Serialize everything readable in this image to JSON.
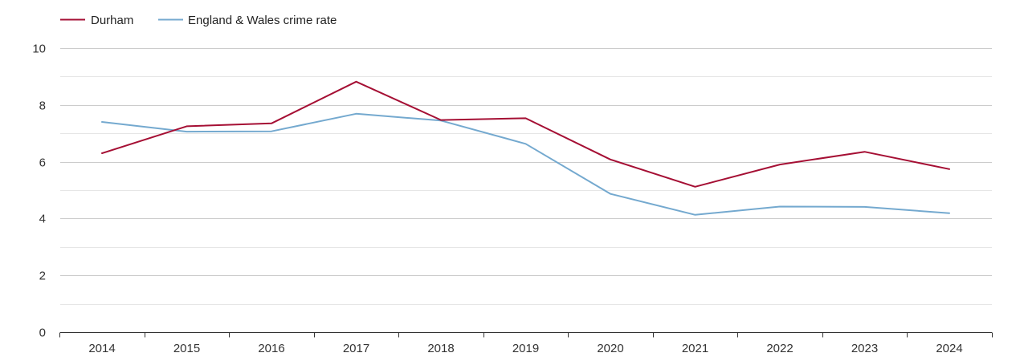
{
  "chart_data": {
    "type": "line",
    "title": "",
    "xlabel": "",
    "ylabel": "",
    "categories": [
      "2014",
      "2015",
      "2016",
      "2017",
      "2018",
      "2019",
      "2020",
      "2021",
      "2022",
      "2023",
      "2024"
    ],
    "ylim": [
      0,
      10
    ],
    "y_ticks": [
      "0",
      "2",
      "4",
      "6",
      "8",
      "10"
    ],
    "grid": true,
    "legend_position": "top-left",
    "series": [
      {
        "name": "Durham",
        "color": "#a50f34",
        "values": [
          6.3,
          7.25,
          7.35,
          8.82,
          7.47,
          7.53,
          6.08,
          5.12,
          5.9,
          6.35,
          5.74
        ]
      },
      {
        "name": "England & Wales crime rate",
        "color": "#74a9cf",
        "values": [
          7.4,
          7.06,
          7.07,
          7.69,
          7.45,
          6.63,
          4.87,
          4.13,
          4.42,
          4.41,
          4.19
        ]
      }
    ]
  }
}
